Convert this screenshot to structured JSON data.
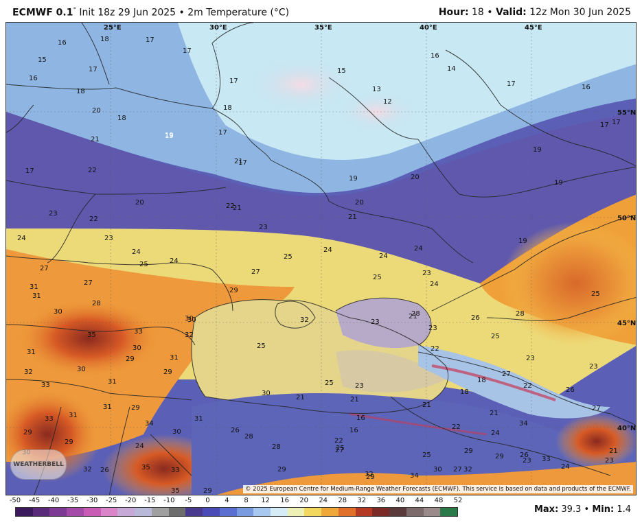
{
  "header": {
    "model": "ECMWF 0.1",
    "deg": "°",
    "init": "Init 18z 29 Jun 2025",
    "sep": "•",
    "field": "2m Temperature (°C)",
    "hour_label": "Hour:",
    "hour_value": "18",
    "valid_label": "Valid:",
    "valid_value": "12z Mon 30 Jun 2025"
  },
  "grid_labels": {
    "lon": [
      "25°E",
      "30°E",
      "35°E",
      "40°E",
      "45°E"
    ],
    "lat": [
      "55°N",
      "50°N",
      "45°N",
      "40°N"
    ]
  },
  "temperature_labels": [
    "16",
    "18",
    "17",
    "17",
    "15",
    "17",
    "16",
    "18",
    "20",
    "18",
    "21",
    "19",
    "19",
    "17",
    "18",
    "17",
    "17",
    "21",
    "22",
    "20",
    "23",
    "22",
    "22",
    "21",
    "23",
    "24",
    "23",
    "17",
    "15",
    "13",
    "12",
    "16",
    "14",
    "17",
    "16",
    "17",
    "17",
    "19",
    "19",
    "20",
    "19",
    "20",
    "21",
    "19",
    "24",
    "24",
    "25",
    "25",
    "24",
    "24",
    "24",
    "23",
    "25",
    "27",
    "31",
    "31",
    "27",
    "28",
    "30",
    "35",
    "33",
    "32",
    "30",
    "29",
    "31",
    "31",
    "30",
    "32",
    "29",
    "33",
    "30",
    "31",
    "33",
    "31",
    "29",
    "31",
    "29",
    "29",
    "30",
    "32",
    "34",
    "31",
    "33",
    "35",
    "30",
    "35",
    "26",
    "26",
    "24",
    "25",
    "27",
    "29",
    "30",
    "32",
    "28",
    "28",
    "25",
    "26",
    "24",
    "23",
    "23",
    "23",
    "25",
    "27",
    "28",
    "30",
    "25",
    "23",
    "23",
    "22",
    "21",
    "21",
    "21",
    "18",
    "21",
    "22",
    "18",
    "16",
    "16",
    "25",
    "21",
    "22",
    "24",
    "22",
    "27",
    "26",
    "26",
    "29",
    "25",
    "29",
    "29",
    "29",
    "32",
    "34",
    "30",
    "27",
    "32",
    "33",
    "29",
    "27",
    "21",
    "23",
    "23",
    "34",
    "24",
    "26",
    "28"
  ],
  "scale": {
    "ticks": [
      "-50",
      "-45",
      "-40",
      "-35",
      "-30",
      "-25",
      "-20",
      "-15",
      "-10",
      "-5",
      "0",
      "4",
      "8",
      "12",
      "16",
      "20",
      "24",
      "28",
      "32",
      "36",
      "40",
      "44",
      "48",
      "52"
    ],
    "colors": [
      "#3a1a5c",
      "#5a2a7a",
      "#7d3a95",
      "#a44aa8",
      "#c95cb5",
      "#d985c7",
      "#c6a9d6",
      "#b8b8d8",
      "#a0a0a0",
      "#6d6d6d",
      "#4a3a8f",
      "#4b4bb8",
      "#5a6fd0",
      "#7a9be0",
      "#a9c8ef",
      "#d6ecf6",
      "#eef1b6",
      "#f3d860",
      "#f0a83a",
      "#e0702a",
      "#b43a24",
      "#7b2a28",
      "#5a3a3a",
      "#7d6a6a",
      "#9a8a8a",
      "#2a7a4a"
    ]
  },
  "copyright": "© 2025 European Centre for Medium-Range Weather Forecasts (ECMWF). This service is based on data and products of the ECMWF.",
  "logo": "WEATHERBELL",
  "stats": {
    "max_label": "Max:",
    "max_value": "39.3",
    "sep": "•",
    "min_label": "Min:",
    "min_value": "1.4"
  }
}
